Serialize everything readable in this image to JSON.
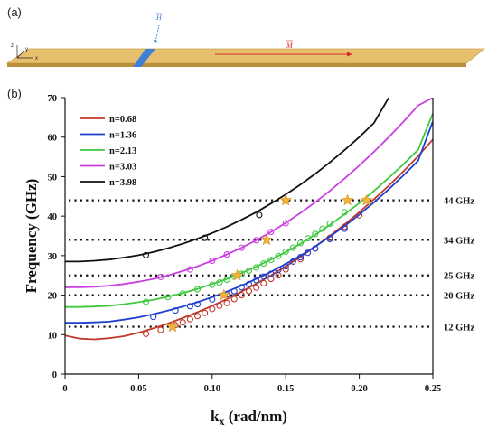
{
  "panel_a": {
    "label": "(a)",
    "axes_labels": {
      "z": "z",
      "y": "y",
      "x": "x"
    },
    "vector_H": "H",
    "vector_M": "M",
    "colors": {
      "slab_top": "#e7c06d",
      "slab_front": "#b8913a",
      "stripe": "#3f7fd6",
      "arrow_M": "#d42a2a",
      "arrow_H": "#3f7fd6"
    }
  },
  "chart_data": {
    "type": "line",
    "panel_label": "(b)",
    "xlabel": "k",
    "xlabel_sub": "x",
    "xlabel_unit": " (rad/nm)",
    "ylabel": "Frequency (GHz)",
    "xlim": [
      0,
      0.25
    ],
    "ylim": [
      0,
      70
    ],
    "xticks": [
      0,
      0.05,
      0.1,
      0.15,
      0.2,
      0.25
    ],
    "xtick_labels": [
      "0",
      "0.05",
      "0.10",
      "0.15",
      "0.20",
      "0.25"
    ],
    "yticks": [
      0,
      10,
      20,
      30,
      40,
      50,
      60,
      70
    ],
    "ytick_labels": [
      "0",
      "10",
      "20",
      "30",
      "40",
      "50",
      "60",
      "70"
    ],
    "legend_position": "top-left",
    "series": [
      {
        "name": "n=0.68",
        "color": "#c0392b",
        "line_x": [
          0,
          0.01,
          0.02,
          0.03,
          0.04,
          0.05,
          0.06,
          0.07,
          0.08,
          0.09,
          0.1,
          0.11,
          0.12,
          0.13,
          0.14,
          0.15,
          0.16,
          0.17,
          0.18,
          0.19,
          0.2,
          0.21,
          0.22,
          0.23,
          0.24,
          0.25
        ],
        "line_y": [
          9.8,
          9.0,
          8.8,
          9.1,
          9.6,
          10.5,
          11.6,
          12.8,
          14.2,
          15.7,
          17.3,
          19.0,
          20.9,
          22.9,
          25.0,
          27.3,
          29.7,
          32.3,
          35.0,
          37.9,
          41.0,
          44.3,
          47.7,
          51.3,
          55.2,
          59.4
        ],
        "markers_x": [
          0.055,
          0.065,
          0.075,
          0.08,
          0.085,
          0.09,
          0.095,
          0.1,
          0.105,
          0.11,
          0.115,
          0.12,
          0.125,
          0.13,
          0.135,
          0.14,
          0.145,
          0.15,
          0.16,
          0.17,
          0.18,
          0.19,
          0.2
        ],
        "markers_y": [
          10.2,
          11.2,
          12.4,
          13.1,
          13.9,
          14.7,
          15.5,
          16.5,
          17.3,
          18.0,
          19.0,
          20.0,
          21.0,
          21.9,
          23.0,
          24.1,
          25.0,
          26.5,
          29.1,
          31.8,
          34.5,
          37.3,
          40.2
        ]
      },
      {
        "name": "n=1.36",
        "color": "#1f3fd1",
        "line_x": [
          0,
          0.01,
          0.02,
          0.03,
          0.04,
          0.05,
          0.06,
          0.07,
          0.08,
          0.09,
          0.1,
          0.11,
          0.12,
          0.13,
          0.14,
          0.15,
          0.16,
          0.17,
          0.18,
          0.19,
          0.2,
          0.21,
          0.22,
          0.23,
          0.24,
          0.25
        ],
        "line_y": [
          13.0,
          13.0,
          13.1,
          13.3,
          13.8,
          14.4,
          15.2,
          16.1,
          17.1,
          18.2,
          19.5,
          20.9,
          22.4,
          24.1,
          25.9,
          27.9,
          30.0,
          32.3,
          34.8,
          37.5,
          40.4,
          43.5,
          46.8,
          50.3,
          54.0,
          64.0
        ],
        "markers_x": [
          0.06,
          0.075,
          0.085,
          0.09,
          0.1,
          0.11,
          0.115,
          0.12,
          0.125,
          0.13,
          0.135,
          0.14,
          0.145,
          0.15,
          0.155,
          0.16,
          0.165,
          0.17,
          0.18,
          0.19
        ],
        "markers_y": [
          14.5,
          16.1,
          17.2,
          17.7,
          18.9,
          20.2,
          21.0,
          22.0,
          22.8,
          23.8,
          24.7,
          25.4,
          26.4,
          27.3,
          28.5,
          29.6,
          30.7,
          31.8,
          34.2,
          36.8
        ]
      },
      {
        "name": "n=2.13",
        "color": "#3ec93e",
        "line_x": [
          0,
          0.01,
          0.02,
          0.03,
          0.04,
          0.05,
          0.06,
          0.07,
          0.08,
          0.09,
          0.1,
          0.11,
          0.12,
          0.13,
          0.14,
          0.15,
          0.16,
          0.17,
          0.18,
          0.19,
          0.2,
          0.21,
          0.22,
          0.23,
          0.24,
          0.25
        ],
        "line_y": [
          17.0,
          17.0,
          17.1,
          17.3,
          17.7,
          18.2,
          18.8,
          19.6,
          20.5,
          21.6,
          22.8,
          24.1,
          25.6,
          27.2,
          29.0,
          30.9,
          33.0,
          35.3,
          37.8,
          40.5,
          43.3,
          46.4,
          49.7,
          53.1,
          56.8,
          66.0
        ],
        "markers_x": [
          0.055,
          0.07,
          0.08,
          0.09,
          0.1,
          0.105,
          0.11,
          0.115,
          0.12,
          0.125,
          0.13,
          0.135,
          0.14,
          0.145,
          0.15,
          0.155,
          0.16,
          0.165,
          0.17,
          0.175,
          0.18,
          0.19
        ],
        "markers_y": [
          18.3,
          19.5,
          20.4,
          21.5,
          22.6,
          23.2,
          23.9,
          24.7,
          25.4,
          26.2,
          27.0,
          28.0,
          28.9,
          29.9,
          31.0,
          32.0,
          33.2,
          34.4,
          35.5,
          36.8,
          38.1,
          41.0
        ]
      },
      {
        "name": "n=3.03",
        "color": "#c93fe0",
        "line_x": [
          0,
          0.01,
          0.02,
          0.03,
          0.04,
          0.05,
          0.06,
          0.07,
          0.08,
          0.09,
          0.1,
          0.11,
          0.12,
          0.13,
          0.14,
          0.15,
          0.16,
          0.17,
          0.18,
          0.19,
          0.2,
          0.21,
          0.22,
          0.23,
          0.24,
          0.25
        ],
        "line_y": [
          22.0,
          22.0,
          22.1,
          22.4,
          22.8,
          23.4,
          24.1,
          25.0,
          26.1,
          27.3,
          28.7,
          30.3,
          32.0,
          33.9,
          36.0,
          38.3,
          40.8,
          43.5,
          46.4,
          49.5,
          52.8,
          56.3,
          60.0,
          63.9,
          68.0,
          70.0
        ],
        "markers_x": [
          0.065,
          0.085,
          0.1,
          0.11,
          0.12,
          0.13,
          0.14,
          0.15
        ],
        "markers_y": [
          24.6,
          26.5,
          28.7,
          30.3,
          32.0,
          33.9,
          36.0,
          38.2
        ]
      },
      {
        "name": "n=3.98",
        "color": "#111111",
        "line_x": [
          0,
          0.01,
          0.02,
          0.03,
          0.04,
          0.05,
          0.06,
          0.07,
          0.08,
          0.09,
          0.1,
          0.11,
          0.12,
          0.13,
          0.14,
          0.15,
          0.16,
          0.17,
          0.18,
          0.19,
          0.2,
          0.21,
          0.22
        ],
        "line_y": [
          28.5,
          28.5,
          28.7,
          29.0,
          29.5,
          30.1,
          30.9,
          31.9,
          33.0,
          34.3,
          35.7,
          37.3,
          39.1,
          41.0,
          43.2,
          45.5,
          48.0,
          50.7,
          53.6,
          56.7,
          60.0,
          63.6,
          70.0
        ],
        "markers_x": [
          0.055,
          0.095,
          0.132
        ],
        "markers_y": [
          30.1,
          34.5,
          40.3
        ]
      }
    ],
    "reference_lines": [
      {
        "y": 12,
        "label": "12 GHz"
      },
      {
        "y": 20,
        "label": "20 GHz"
      },
      {
        "y": 25,
        "label": "25 GHz"
      },
      {
        "y": 34,
        "label": "34 GHz"
      },
      {
        "y": 44,
        "label": "44 GHz"
      }
    ],
    "stars": [
      {
        "x": 0.073,
        "y": 12
      },
      {
        "x": 0.108,
        "y": 20
      },
      {
        "x": 0.117,
        "y": 25
      },
      {
        "x": 0.137,
        "y": 34
      },
      {
        "x": 0.15,
        "y": 44
      },
      {
        "x": 0.192,
        "y": 44
      },
      {
        "x": 0.205,
        "y": 44
      }
    ],
    "star_color": "#f2b23a"
  }
}
